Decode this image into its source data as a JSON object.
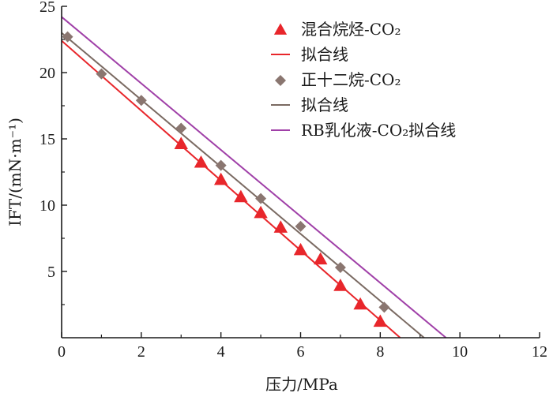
{
  "chart_data": {
    "type": "scatter",
    "xlabel": "压力/MPa",
    "ylabel": "IFT/(mN·m⁻¹)",
    "xlim": [
      0,
      12
    ],
    "ylim": [
      0,
      25
    ],
    "xticks": [
      "0",
      "2",
      "4",
      "6",
      "8",
      "10",
      "12"
    ],
    "yticks": [
      "5",
      "10",
      "15",
      "20",
      "25"
    ],
    "grid": false,
    "legend_position": "top-right",
    "series": [
      {
        "name": "混合烷烃-CO₂",
        "kind": "points",
        "marker": "triangle",
        "color": "#e8262b",
        "x": [
          3.0,
          3.5,
          4.0,
          4.5,
          5.0,
          5.5,
          6.0,
          6.5,
          7.0,
          7.5,
          8.0
        ],
        "y": [
          14.6,
          13.2,
          11.9,
          10.6,
          9.4,
          8.3,
          6.6,
          5.9,
          3.9,
          2.5,
          1.2
        ]
      },
      {
        "name": "拟合线",
        "kind": "line",
        "color": "#e8262b",
        "x": [
          0,
          8.5
        ],
        "y": [
          22.4,
          0
        ]
      },
      {
        "name": "正十二烷-CO₂",
        "kind": "points",
        "marker": "diamond",
        "color": "#8a7670",
        "x": [
          0.15,
          1.0,
          2.0,
          3.0,
          4.0,
          5.0,
          6.0,
          7.0,
          8.1
        ],
        "y": [
          22.7,
          19.9,
          17.9,
          15.8,
          13.0,
          10.5,
          8.4,
          5.3,
          2.3
        ]
      },
      {
        "name": "拟合线",
        "kind": "line",
        "color": "#7a6a62",
        "x": [
          0,
          9.1
        ],
        "y": [
          23.0,
          0
        ]
      },
      {
        "name": "RB乳化液-CO₂拟合线",
        "kind": "line",
        "color": "#a040a8",
        "x": [
          0,
          9.65
        ],
        "y": [
          24.2,
          0
        ]
      }
    ]
  }
}
